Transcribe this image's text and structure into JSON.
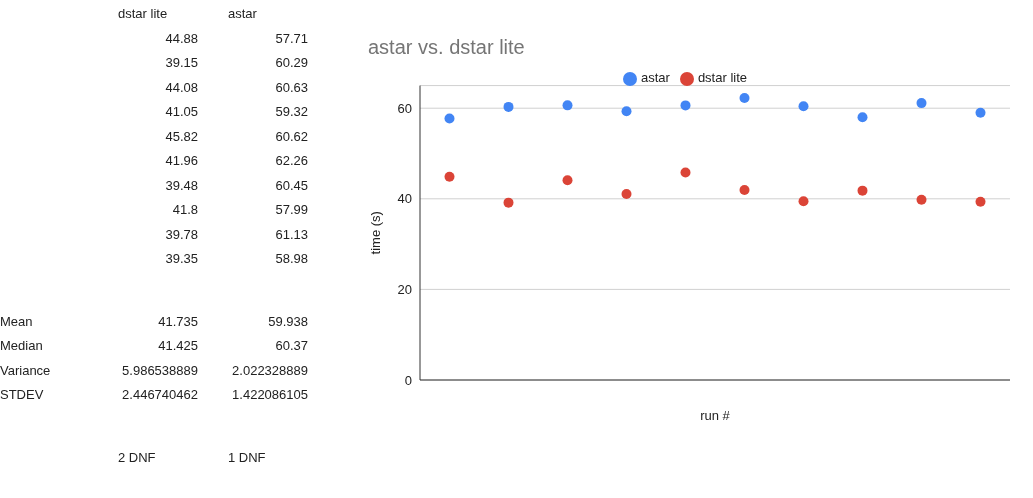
{
  "chart_data": [
    {
      "type": "other",
      "annotations": [
        "dstar lite",
        "astar",
        "44.88",
        "57.71",
        "39.15",
        "60.29",
        "44.08",
        "60.63",
        "41.05",
        "59.32",
        "45.82",
        "60.62",
        "41.96",
        "62.26",
        "39.48",
        "60.45",
        "41.8",
        "57.99",
        "39.78",
        "61.13",
        "39.35",
        "58.98",
        "Mean",
        "41.735",
        "59.938",
        "Median",
        "41.425",
        "60.37",
        "Variance",
        "5.986538889",
        "2.022328889",
        "STDEV",
        "2.446740462",
        "1.422086105",
        "2 DNF",
        "1 DNF"
      ]
    },
    {
      "type": "scatter",
      "title": "astar vs. dstar lite",
      "xlabel": "run #",
      "ylabel": "time (s)",
      "categories": [
        null,
        null,
        null,
        null,
        null,
        null,
        null,
        null,
        null,
        null
      ],
      "series": [
        {
          "name": "astar",
          "color": "#4285f4",
          "values": [
            57.71,
            60.29,
            60.63,
            59.32,
            60.62,
            62.26,
            60.45,
            57.99,
            61.13,
            58.98
          ]
        },
        {
          "name": "dstar lite",
          "color": "#db4437",
          "values": [
            44.88,
            39.15,
            44.08,
            41.05,
            45.82,
            41.96,
            39.48,
            41.8,
            39.78,
            39.35
          ]
        }
      ],
      "ylim": [
        0,
        65
      ],
      "yticks": [
        0,
        20,
        40,
        60
      ],
      "grid": "y",
      "legend": "top",
      "marker": "circle"
    }
  ]
}
